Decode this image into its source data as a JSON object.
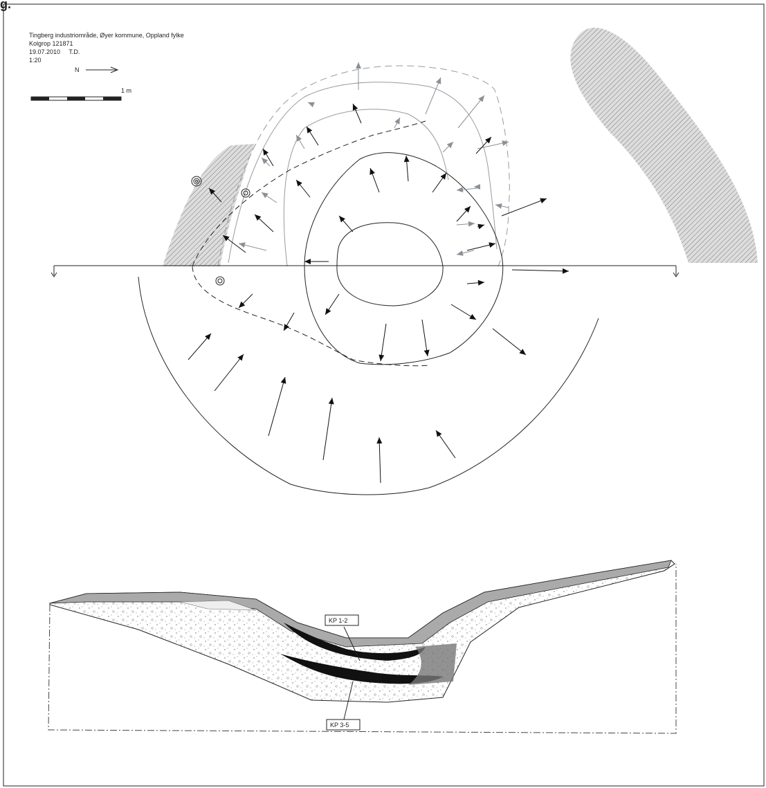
{
  "figure_label": "g.",
  "header": {
    "lines": [
      "Tingberg industriområde, Øyer kommune, Oppland fylke",
      "Kolgrop 121871",
      "19.07.2010     T.D.",
      "1:20"
    ]
  },
  "north_label": "N",
  "scale_label": "1 m",
  "section_labels": [
    "KP 1-2",
    "KP 3-5"
  ]
}
